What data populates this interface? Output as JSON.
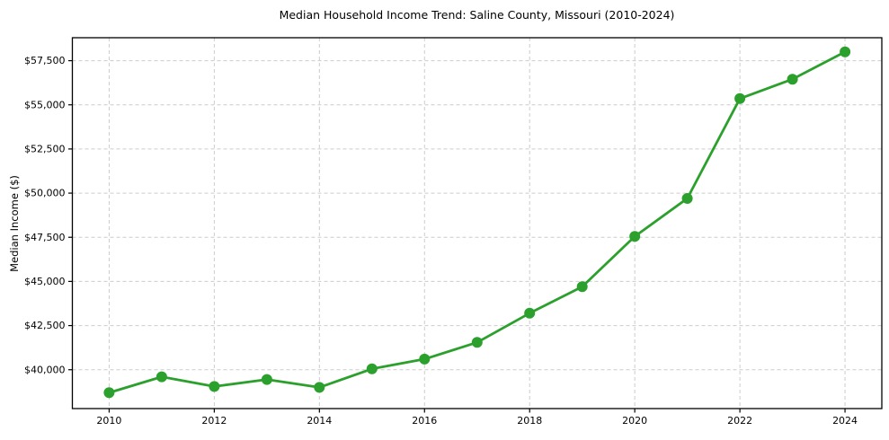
{
  "chart_data": {
    "type": "line",
    "title": "Median Household Income Trend: Saline County, Missouri (2010-2024)",
    "xlabel": "",
    "ylabel": "Median Income ($)",
    "x": [
      2010,
      2011,
      2012,
      2013,
      2014,
      2015,
      2016,
      2017,
      2018,
      2019,
      2020,
      2021,
      2022,
      2023,
      2024
    ],
    "series": [
      {
        "name": "Median household income",
        "color": "#2ca02c",
        "values": [
          38700,
          39600,
          39050,
          39450,
          39000,
          40050,
          40600,
          41550,
          43200,
          44700,
          47550,
          49700,
          55350,
          56450,
          58000
        ]
      }
    ],
    "marker": "circle",
    "line_width": 2.8,
    "marker_radius": 6,
    "grid": true,
    "grid_style": "dashed",
    "grid_color": "#cccccc",
    "axis_color": "#000000",
    "legend": "none",
    "xlim": [
      2009.3,
      2024.7
    ],
    "ylim": [
      37800,
      58800
    ],
    "xticks": {
      "values": [
        2010,
        2012,
        2014,
        2016,
        2018,
        2020,
        2022,
        2024
      ],
      "labels": [
        "2010",
        "2012",
        "2014",
        "2016",
        "2018",
        "2020",
        "2022",
        "2024"
      ]
    },
    "yticks": {
      "values": [
        40000,
        42500,
        45000,
        47500,
        50000,
        52500,
        55000,
        57500
      ],
      "labels": [
        "$40,000",
        "$42,500",
        "$45,000",
        "$47,500",
        "$50,000",
        "$52,500",
        "$55,000",
        "$57,500"
      ]
    }
  }
}
